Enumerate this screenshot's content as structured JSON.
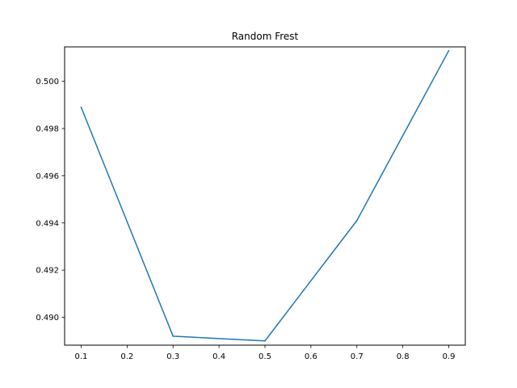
{
  "chart_data": {
    "type": "line",
    "title": "Random Frest",
    "xlabel": "",
    "ylabel": "",
    "xlim": [
      0.064,
      0.936
    ],
    "ylim": [
      0.48882,
      0.50146
    ],
    "xticks": [
      0.1,
      0.2,
      0.3,
      0.4,
      0.5,
      0.6,
      0.7,
      0.8,
      0.9
    ],
    "xtick_labels": [
      "0.1",
      "0.2",
      "0.3",
      "0.4",
      "0.5",
      "0.6",
      "0.7",
      "0.8",
      "0.9"
    ],
    "yticks": [
      0.49,
      0.492,
      0.494,
      0.496,
      0.498,
      0.5
    ],
    "ytick_labels": [
      "0.490",
      "0.492",
      "0.494",
      "0.496",
      "0.498",
      "0.500"
    ],
    "grid": false,
    "series": [
      {
        "color": "#1f77b4",
        "x": [
          0.1,
          0.3,
          0.5,
          0.7,
          0.9
        ],
        "y": [
          0.4989,
          0.4892,
          0.489,
          0.4941,
          0.5013
        ]
      }
    ]
  }
}
